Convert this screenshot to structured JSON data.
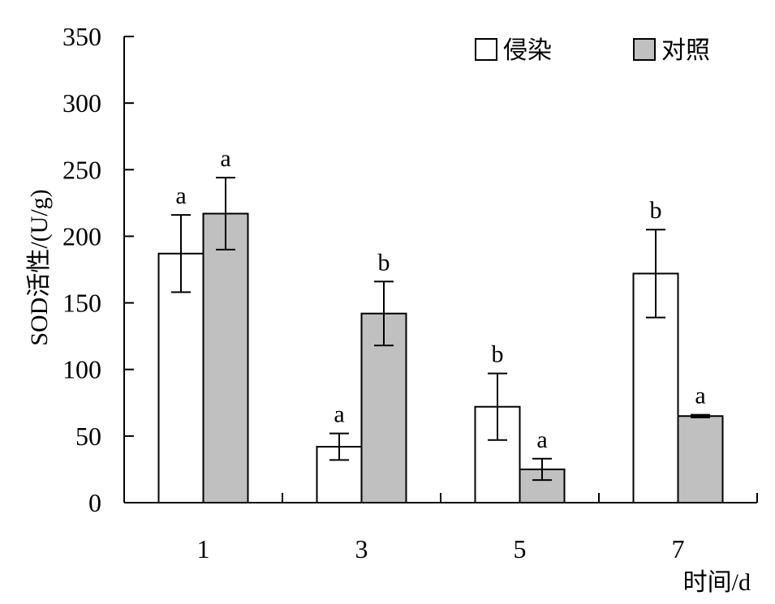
{
  "chart_data": {
    "type": "bar",
    "categories": [
      "1",
      "3",
      "5",
      "7"
    ],
    "series": [
      {
        "name": "侵染",
        "fill": "#ffffff",
        "values": [
          187,
          42,
          72,
          172
        ],
        "errors": [
          29,
          10,
          25,
          33
        ],
        "letters": [
          "a",
          "a",
          "b",
          "b"
        ]
      },
      {
        "name": "对照",
        "fill": "#c0c0c0",
        "values": [
          217,
          142,
          25,
          65
        ],
        "errors": [
          27,
          24,
          8,
          1
        ],
        "letters": [
          "a",
          "b",
          "a",
          "a"
        ]
      }
    ],
    "xlabel": "时间/d",
    "ylabel": "SOD活性/(U/g)",
    "ylim": [
      0,
      350
    ],
    "yticks": [
      0,
      50,
      100,
      150,
      200,
      250,
      300,
      350
    ],
    "grid": false,
    "legend_position": "top-right"
  }
}
